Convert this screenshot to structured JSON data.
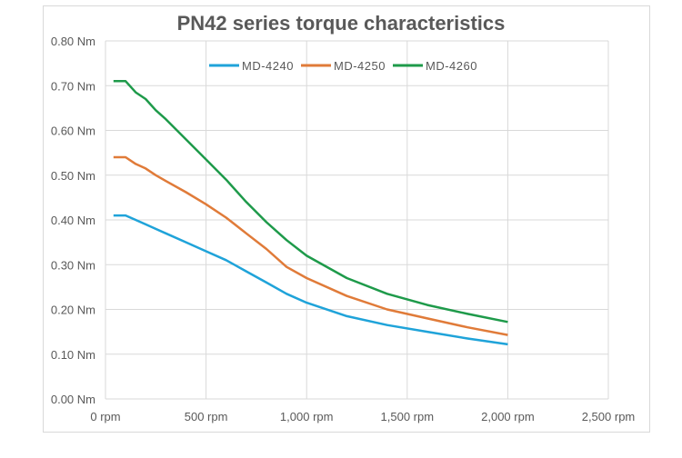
{
  "chart_data": {
    "type": "line",
    "title": "PN42 series torque characteristics",
    "xlabel": "",
    "ylabel": "",
    "xlim": [
      0,
      2500
    ],
    "ylim": [
      0,
      0.8
    ],
    "grid": true,
    "legend_position": "top-center",
    "x_ticks": [
      0,
      500,
      1000,
      1500,
      2000,
      2500
    ],
    "x_tick_labels": [
      "0 rpm",
      "500 rpm",
      "1,000 rpm",
      "1,500 rpm",
      "2,000 rpm",
      "2,500 rpm"
    ],
    "y_ticks": [
      0,
      0.1,
      0.2,
      0.3,
      0.4,
      0.5,
      0.6,
      0.7,
      0.8
    ],
    "y_tick_labels": [
      "0.00 Nm",
      "0.10 Nm",
      "0.20 Nm",
      "0.30 Nm",
      "0.40 Nm",
      "0.50 Nm",
      "0.60 Nm",
      "0.70 Nm",
      "0.80 Nm"
    ],
    "x": [
      40,
      100,
      150,
      200,
      250,
      300,
      400,
      500,
      600,
      700,
      800,
      900,
      1000,
      1200,
      1400,
      1600,
      1800,
      2000
    ],
    "series": [
      {
        "name": "MD-4240",
        "color": "#1fa3d9",
        "values": [
          0.41,
          0.41,
          0.4,
          0.39,
          0.38,
          0.37,
          0.35,
          0.33,
          0.31,
          0.285,
          0.26,
          0.235,
          0.215,
          0.185,
          0.165,
          0.15,
          0.135,
          0.122
        ]
      },
      {
        "name": "MD-4250",
        "color": "#e07b39",
        "values": [
          0.54,
          0.54,
          0.525,
          0.515,
          0.5,
          0.487,
          0.462,
          0.435,
          0.405,
          0.37,
          0.335,
          0.295,
          0.27,
          0.23,
          0.2,
          0.18,
          0.16,
          0.143
        ]
      },
      {
        "name": "MD-4260",
        "color": "#1e9a4a",
        "values": [
          0.71,
          0.71,
          0.685,
          0.67,
          0.645,
          0.625,
          0.58,
          0.535,
          0.49,
          0.44,
          0.395,
          0.355,
          0.32,
          0.27,
          0.235,
          0.21,
          0.19,
          0.172
        ]
      }
    ]
  }
}
